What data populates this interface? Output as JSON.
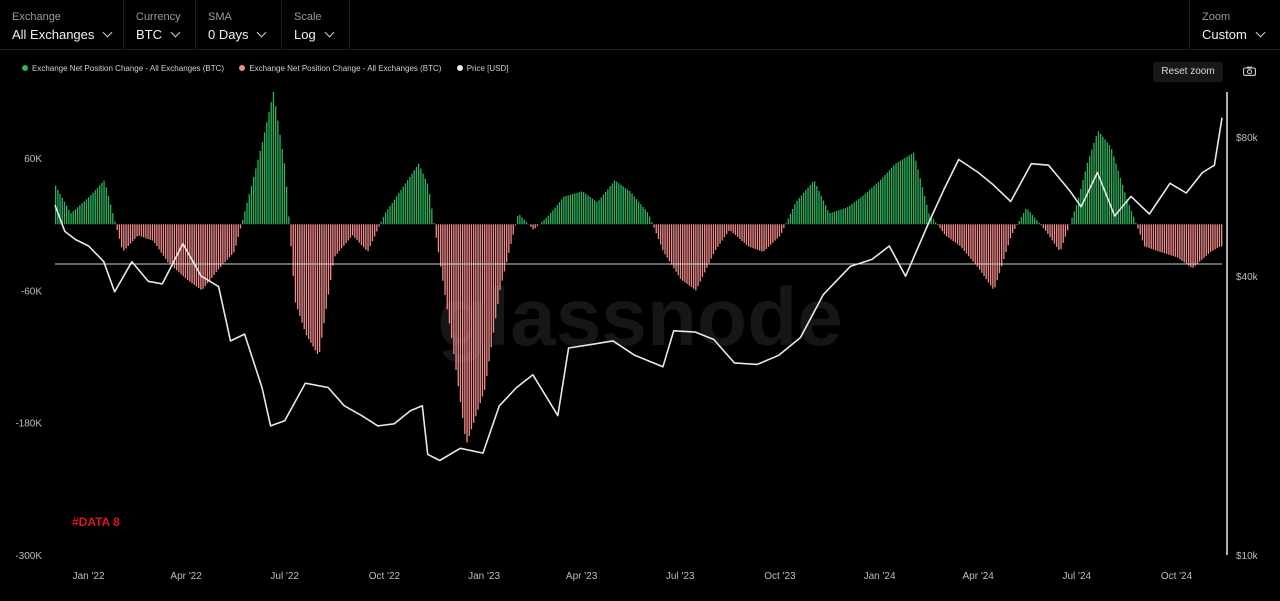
{
  "toolbar": {
    "exchange": {
      "label": "Exchange",
      "value": "All Exchanges"
    },
    "currency": {
      "label": "Currency",
      "value": "BTC"
    },
    "sma": {
      "label": "SMA",
      "value": "0 Days"
    },
    "scale": {
      "label": "Scale",
      "value": "Log"
    },
    "zoom": {
      "label": "Zoom",
      "value": "Custom"
    },
    "reset_label": "Reset zoom",
    "camera_icon": "camera-icon"
  },
  "colors": {
    "positive": "#2cb35f",
    "negative": "#f28c8c",
    "price": "#e8e8e8",
    "annotation": "#e0141e"
  },
  "annotation": "#DATA 8",
  "watermark": "glassnode",
  "chart_data": {
    "type": "bar",
    "legend": [
      {
        "name": "Exchange Net Position Change - All Exchanges (BTC)",
        "color": "#2cb35f"
      },
      {
        "name": "Exchange Net Position Change - All Exchanges (BTC)",
        "color": "#f28c8c"
      },
      {
        "name": "Price [USD]",
        "color": "#e8e8e8"
      }
    ],
    "legend_position": "top-left",
    "x_ticks": [
      "Jan '22",
      "Apr '22",
      "Jul '22",
      "Oct '22",
      "Jan '23",
      "Apr '23",
      "Jul '23",
      "Oct '23",
      "Jan '24",
      "Apr '24",
      "Jul '24",
      "Oct '24"
    ],
    "x_range": [
      "2021-12-01",
      "2024-11-12"
    ],
    "y_left": {
      "ticks": [
        "60K",
        "-60K",
        "-180K",
        "-300K"
      ],
      "range": [
        -300000,
        120000
      ]
    },
    "y_right": {
      "scale": "log",
      "ticks": [
        "$80k",
        "$40k",
        "$10k"
      ],
      "range": [
        10000,
        100000
      ]
    },
    "grid": false,
    "net_position_change_btc": {
      "x": [
        "2021-12-01",
        "2021-12-15",
        "2022-01-01",
        "2022-01-15",
        "2022-02-01",
        "2022-02-15",
        "2022-03-01",
        "2022-03-15",
        "2022-04-01",
        "2022-04-15",
        "2022-05-01",
        "2022-05-15",
        "2022-06-01",
        "2022-06-10",
        "2022-06-20",
        "2022-07-01",
        "2022-07-10",
        "2022-07-20",
        "2022-08-01",
        "2022-08-15",
        "2022-09-01",
        "2022-09-15",
        "2022-10-01",
        "2022-10-15",
        "2022-11-01",
        "2022-11-10",
        "2022-11-20",
        "2022-12-01",
        "2022-12-15",
        "2023-01-01",
        "2023-01-15",
        "2023-02-01",
        "2023-02-15",
        "2023-03-01",
        "2023-03-15",
        "2023-04-01",
        "2023-04-15",
        "2023-05-01",
        "2023-05-15",
        "2023-06-01",
        "2023-06-15",
        "2023-07-01",
        "2023-07-15",
        "2023-08-01",
        "2023-08-15",
        "2023-09-01",
        "2023-09-15",
        "2023-10-01",
        "2023-10-15",
        "2023-11-01",
        "2023-11-15",
        "2023-12-01",
        "2023-12-15",
        "2024-01-01",
        "2024-01-15",
        "2024-02-01",
        "2024-02-15",
        "2024-03-01",
        "2024-03-15",
        "2024-04-01",
        "2024-04-15",
        "2024-05-01",
        "2024-05-15",
        "2024-06-01",
        "2024-06-15",
        "2024-07-01",
        "2024-07-10",
        "2024-07-20",
        "2024-08-01",
        "2024-08-15",
        "2024-09-01",
        "2024-09-15",
        "2024-10-01",
        "2024-10-15",
        "2024-11-01",
        "2024-11-10"
      ],
      "values": [
        35000,
        10000,
        25000,
        40000,
        -25000,
        -10000,
        -15000,
        -35000,
        -50000,
        -60000,
        -40000,
        -25000,
        40000,
        75000,
        120000,
        50000,
        -70000,
        -100000,
        -120000,
        -30000,
        -10000,
        -25000,
        10000,
        30000,
        55000,
        35000,
        -30000,
        -100000,
        -200000,
        -150000,
        -60000,
        10000,
        -5000,
        8000,
        25000,
        30000,
        20000,
        40000,
        30000,
        10000,
        -25000,
        -50000,
        -60000,
        -25000,
        -5000,
        -20000,
        -25000,
        -10000,
        20000,
        40000,
        10000,
        15000,
        25000,
        40000,
        55000,
        65000,
        10000,
        -10000,
        -20000,
        -40000,
        -60000,
        -10000,
        15000,
        -5000,
        -25000,
        20000,
        55000,
        85000,
        70000,
        25000,
        -20000,
        -25000,
        -30000,
        -40000,
        -25000,
        -20000
      ]
    },
    "price_usd": {
      "x": [
        "2021-12-01",
        "2021-12-10",
        "2021-12-20",
        "2022-01-01",
        "2022-01-15",
        "2022-01-25",
        "2022-02-10",
        "2022-02-25",
        "2022-03-10",
        "2022-03-29",
        "2022-04-15",
        "2022-05-01",
        "2022-05-12",
        "2022-05-25",
        "2022-06-10",
        "2022-06-18",
        "2022-07-01",
        "2022-07-20",
        "2022-08-10",
        "2022-08-25",
        "2022-09-10",
        "2022-09-25",
        "2022-10-10",
        "2022-10-25",
        "2022-11-05",
        "2022-11-10",
        "2022-11-21",
        "2022-12-10",
        "2022-12-31",
        "2023-01-15",
        "2023-01-31",
        "2023-02-15",
        "2023-03-10",
        "2023-03-20",
        "2023-04-10",
        "2023-04-30",
        "2023-05-20",
        "2023-06-15",
        "2023-06-25",
        "2023-07-15",
        "2023-08-01",
        "2023-08-20",
        "2023-09-10",
        "2023-09-30",
        "2023-10-20",
        "2023-11-10",
        "2023-12-05",
        "2023-12-25",
        "2024-01-10",
        "2024-01-25",
        "2024-02-15",
        "2024-03-01",
        "2024-03-14",
        "2024-04-01",
        "2024-04-15",
        "2024-05-01",
        "2024-05-20",
        "2024-06-05",
        "2024-06-25",
        "2024-07-05",
        "2024-07-20",
        "2024-08-05",
        "2024-08-20",
        "2024-09-06",
        "2024-09-25",
        "2024-10-10",
        "2024-10-25",
        "2024-11-05",
        "2024-11-12"
      ],
      "values": [
        57000,
        50000,
        48000,
        46500,
        43000,
        37000,
        43000,
        39000,
        38500,
        47000,
        40000,
        38000,
        29000,
        30000,
        23000,
        19000,
        19500,
        23500,
        23000,
        21000,
        20000,
        19000,
        19200,
        20500,
        21000,
        16500,
        16000,
        17000,
        16600,
        21000,
        23000,
        24500,
        20000,
        28000,
        28500,
        29000,
        27000,
        25500,
        30500,
        30300,
        29200,
        26000,
        25800,
        27000,
        29500,
        36500,
        42000,
        43500,
        46500,
        40000,
        52000,
        62000,
        71500,
        67000,
        63000,
        58000,
        70000,
        69500,
        61000,
        56500,
        67000,
        54000,
        59500,
        54500,
        63500,
        60500,
        67000,
        69500,
        88000
      ]
    }
  }
}
